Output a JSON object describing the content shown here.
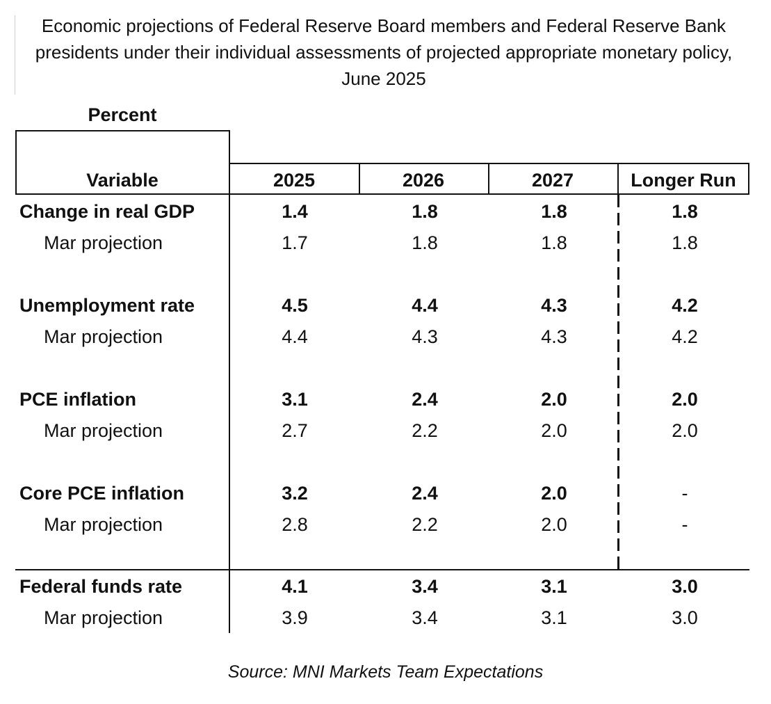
{
  "title": "Economic projections of Federal Reserve Board members and Federal Reserve Bank presidents under their individual assessments of projected appropriate monetary policy, June 2025",
  "unit_label": "Percent",
  "header": {
    "variable": "Variable",
    "col_2025": "2025",
    "col_2026": "2026",
    "col_2027": "2027",
    "col_longer_run": "Longer Run"
  },
  "groups": [
    {
      "name": "Change in real GDP",
      "values": [
        "1.4",
        "1.8",
        "1.8",
        "1.8"
      ],
      "mar_label": "Mar projection",
      "mar_values": [
        "1.7",
        "1.8",
        "1.8",
        "1.8"
      ]
    },
    {
      "name": "Unemployment rate",
      "values": [
        "4.5",
        "4.4",
        "4.3",
        "4.2"
      ],
      "mar_label": "Mar projection",
      "mar_values": [
        "4.4",
        "4.3",
        "4.3",
        "4.2"
      ]
    },
    {
      "name": "PCE inflation",
      "values": [
        "3.1",
        "2.4",
        "2.0",
        "2.0"
      ],
      "mar_label": "Mar projection",
      "mar_values": [
        "2.7",
        "2.2",
        "2.0",
        "2.0"
      ]
    },
    {
      "name": "Core PCE inflation",
      "values": [
        "3.2",
        "2.4",
        "2.0",
        "-"
      ],
      "mar_label": "Mar projection",
      "mar_values": [
        "2.8",
        "2.2",
        "2.0",
        "-"
      ]
    },
    {
      "name": "Federal funds rate",
      "values": [
        "4.1",
        "3.4",
        "3.1",
        "3.0"
      ],
      "mar_label": "Mar projection",
      "mar_values": [
        "3.9",
        "3.4",
        "3.1",
        "3.0"
      ]
    }
  ],
  "source": "Source: MNI Markets Team Expectations"
}
